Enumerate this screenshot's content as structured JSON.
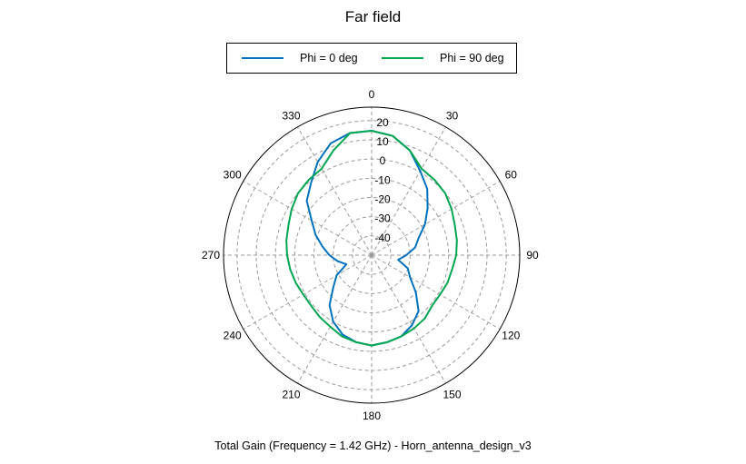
{
  "chart_data": {
    "type": "polar-line",
    "title": "Far field",
    "caption": "Total Gain (Frequency = 1.42 GHz) - Horn_antenna_design_v3",
    "angle_ticks": [
      "0",
      "30",
      "60",
      "90",
      "120",
      "150",
      "180",
      "210",
      "240",
      "270",
      "300",
      "330"
    ],
    "radial_ticks": [
      "20",
      "10",
      "0",
      "-10",
      "-20",
      "-30",
      "-40"
    ],
    "radial_range": [
      -50,
      27
    ],
    "grid": true,
    "legend_position": "top",
    "angles_deg": [
      0,
      10,
      20,
      30,
      40,
      50,
      60,
      70,
      80,
      90,
      100,
      110,
      120,
      130,
      140,
      150,
      160,
      170,
      180,
      190,
      200,
      210,
      220,
      230,
      240,
      250,
      260,
      270,
      280,
      290,
      300,
      310,
      320,
      330,
      340,
      350
    ],
    "series": [
      {
        "name": "Phi = 0 deg",
        "color": "#0072bd",
        "values": [
          14.7,
          13.0,
          8.0,
          0.5,
          -5.0,
          -12.0,
          -18.0,
          -24.0,
          -27.0,
          -32.0,
          -36.0,
          -30.0,
          -27.0,
          -20.0,
          -12.0,
          -8.0,
          -5.0,
          -4.0,
          -3.0,
          -4.0,
          -6.0,
          -10.0,
          -16.0,
          -24.0,
          -29.0,
          -36.0,
          -32.0,
          -28.0,
          -24.0,
          -19.0,
          -14.0,
          -6.0,
          -1.0,
          6.0,
          12.0,
          14.5
        ]
      },
      {
        "name": "Phi = 90 deg",
        "color": "#00a650",
        "values": [
          14.7,
          13.0,
          8.0,
          2.0,
          1.0,
          0.0,
          -2.0,
          -4.0,
          -5.0,
          -6.0,
          -7.5,
          -8.0,
          -9.0,
          -9.0,
          -7.0,
          -6.0,
          -5.0,
          -4.0,
          -3.0,
          -4.0,
          -5.0,
          -7.0,
          -8.0,
          -9.0,
          -9.0,
          -8.0,
          -7.0,
          -6.0,
          -5.0,
          -4.0,
          -2.0,
          0.0,
          1.0,
          2.0,
          8.0,
          14.5
        ]
      }
    ]
  }
}
